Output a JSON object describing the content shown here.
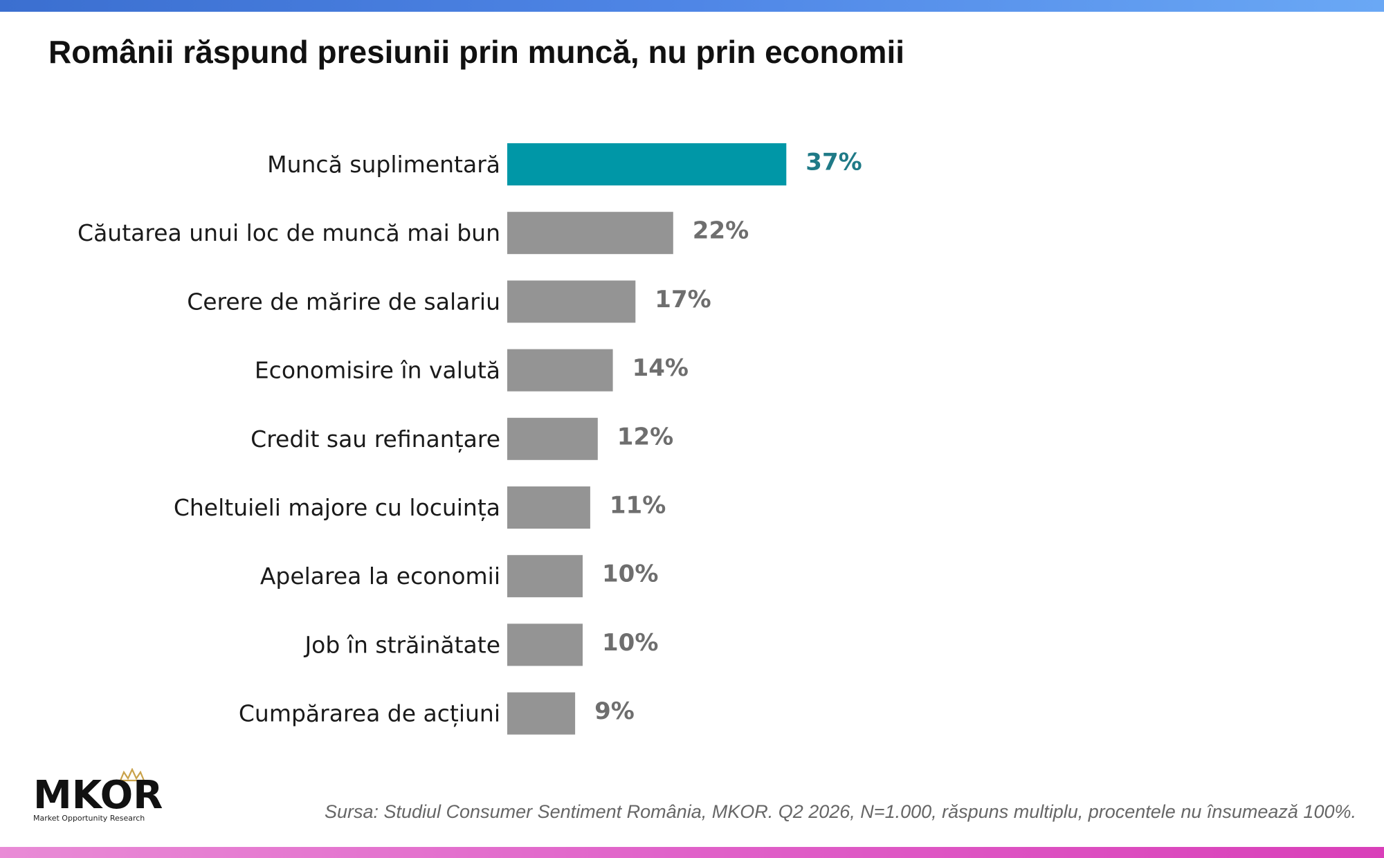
{
  "colors": {
    "highlight": "#0097A7",
    "highlight_label": "#1F7A87",
    "default_bar": "#949494",
    "default_label": "#6E6E6E"
  },
  "footer": {
    "logo_text": "MKOR",
    "logo_tagline": "Market Opportunity Research",
    "source": "Sursa: Studiul Consumer Sentiment România, MKOR. Q2 2026, N=1.000, răspuns multiplu, procentele nu însumează 100%."
  },
  "chart_data": {
    "type": "bar",
    "orientation": "horizontal",
    "title": "Românii răspund presiunii prin muncă, nu prin economii",
    "categories": [
      "Muncă suplimentară",
      "Căutarea unui loc de muncă mai bun",
      "Cerere de mărire de salariu",
      "Economisire în valută",
      "Credit sau refinanțare",
      "Cheltuieli majore cu locuința",
      "Apelarea la economii",
      "Job în străinătate",
      "Cumpărarea de acțiuni"
    ],
    "values": [
      37,
      22,
      17,
      14,
      12,
      11,
      10,
      10,
      9
    ],
    "value_labels": [
      "37%",
      "22%",
      "17%",
      "14%",
      "12%",
      "11%",
      "10%",
      "10%",
      "9%"
    ],
    "highlight_index": 0,
    "unit": "%",
    "grid": false,
    "legend": "none"
  }
}
